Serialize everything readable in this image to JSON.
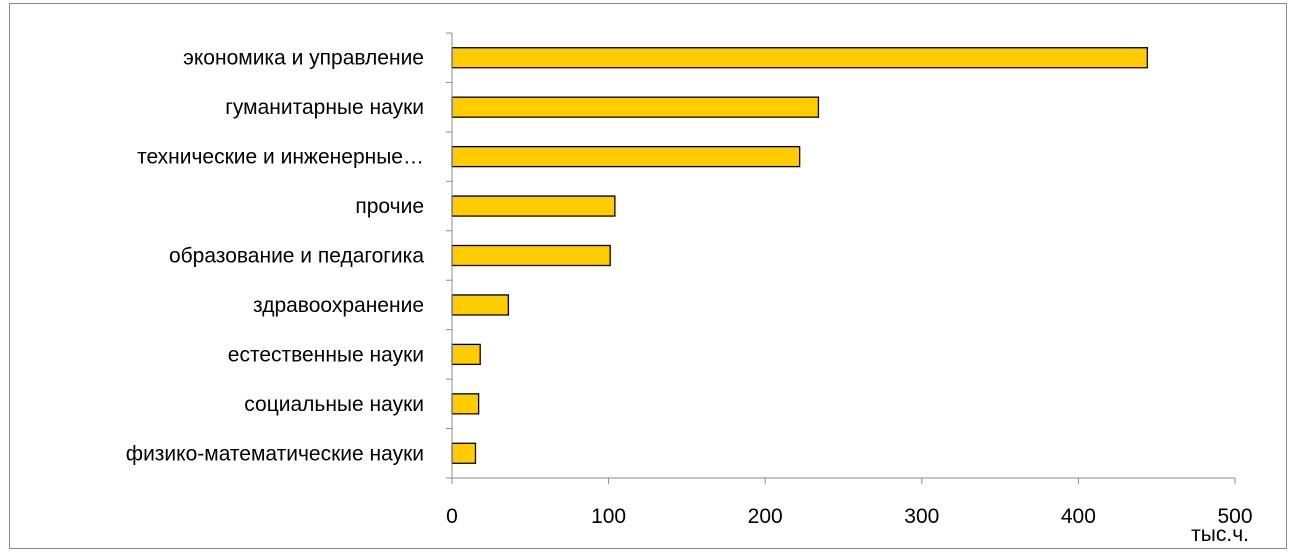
{
  "chart_data": {
    "type": "bar",
    "orientation": "horizontal",
    "categories": [
      "экономика и управление",
      "гуманитарные науки",
      "технические и инженерные…",
      "прочие",
      "образование и педагогика",
      "здравоохранение",
      "естественные науки",
      "социальные науки",
      "физико-математические науки"
    ],
    "values": [
      444,
      234,
      222,
      104,
      101,
      36,
      18,
      17,
      15
    ],
    "title": "",
    "xlabel": "тыс.ч.",
    "ylabel": "",
    "xlim": [
      0,
      500
    ],
    "xticks": [
      0,
      100,
      200,
      300,
      400,
      500
    ],
    "tick_labels": [
      "0",
      "100",
      "200",
      "300",
      "400",
      "500"
    ],
    "grid": false,
    "legend": "none",
    "bar_color": "#FFCC00",
    "bar_edge_color": "#000000"
  }
}
